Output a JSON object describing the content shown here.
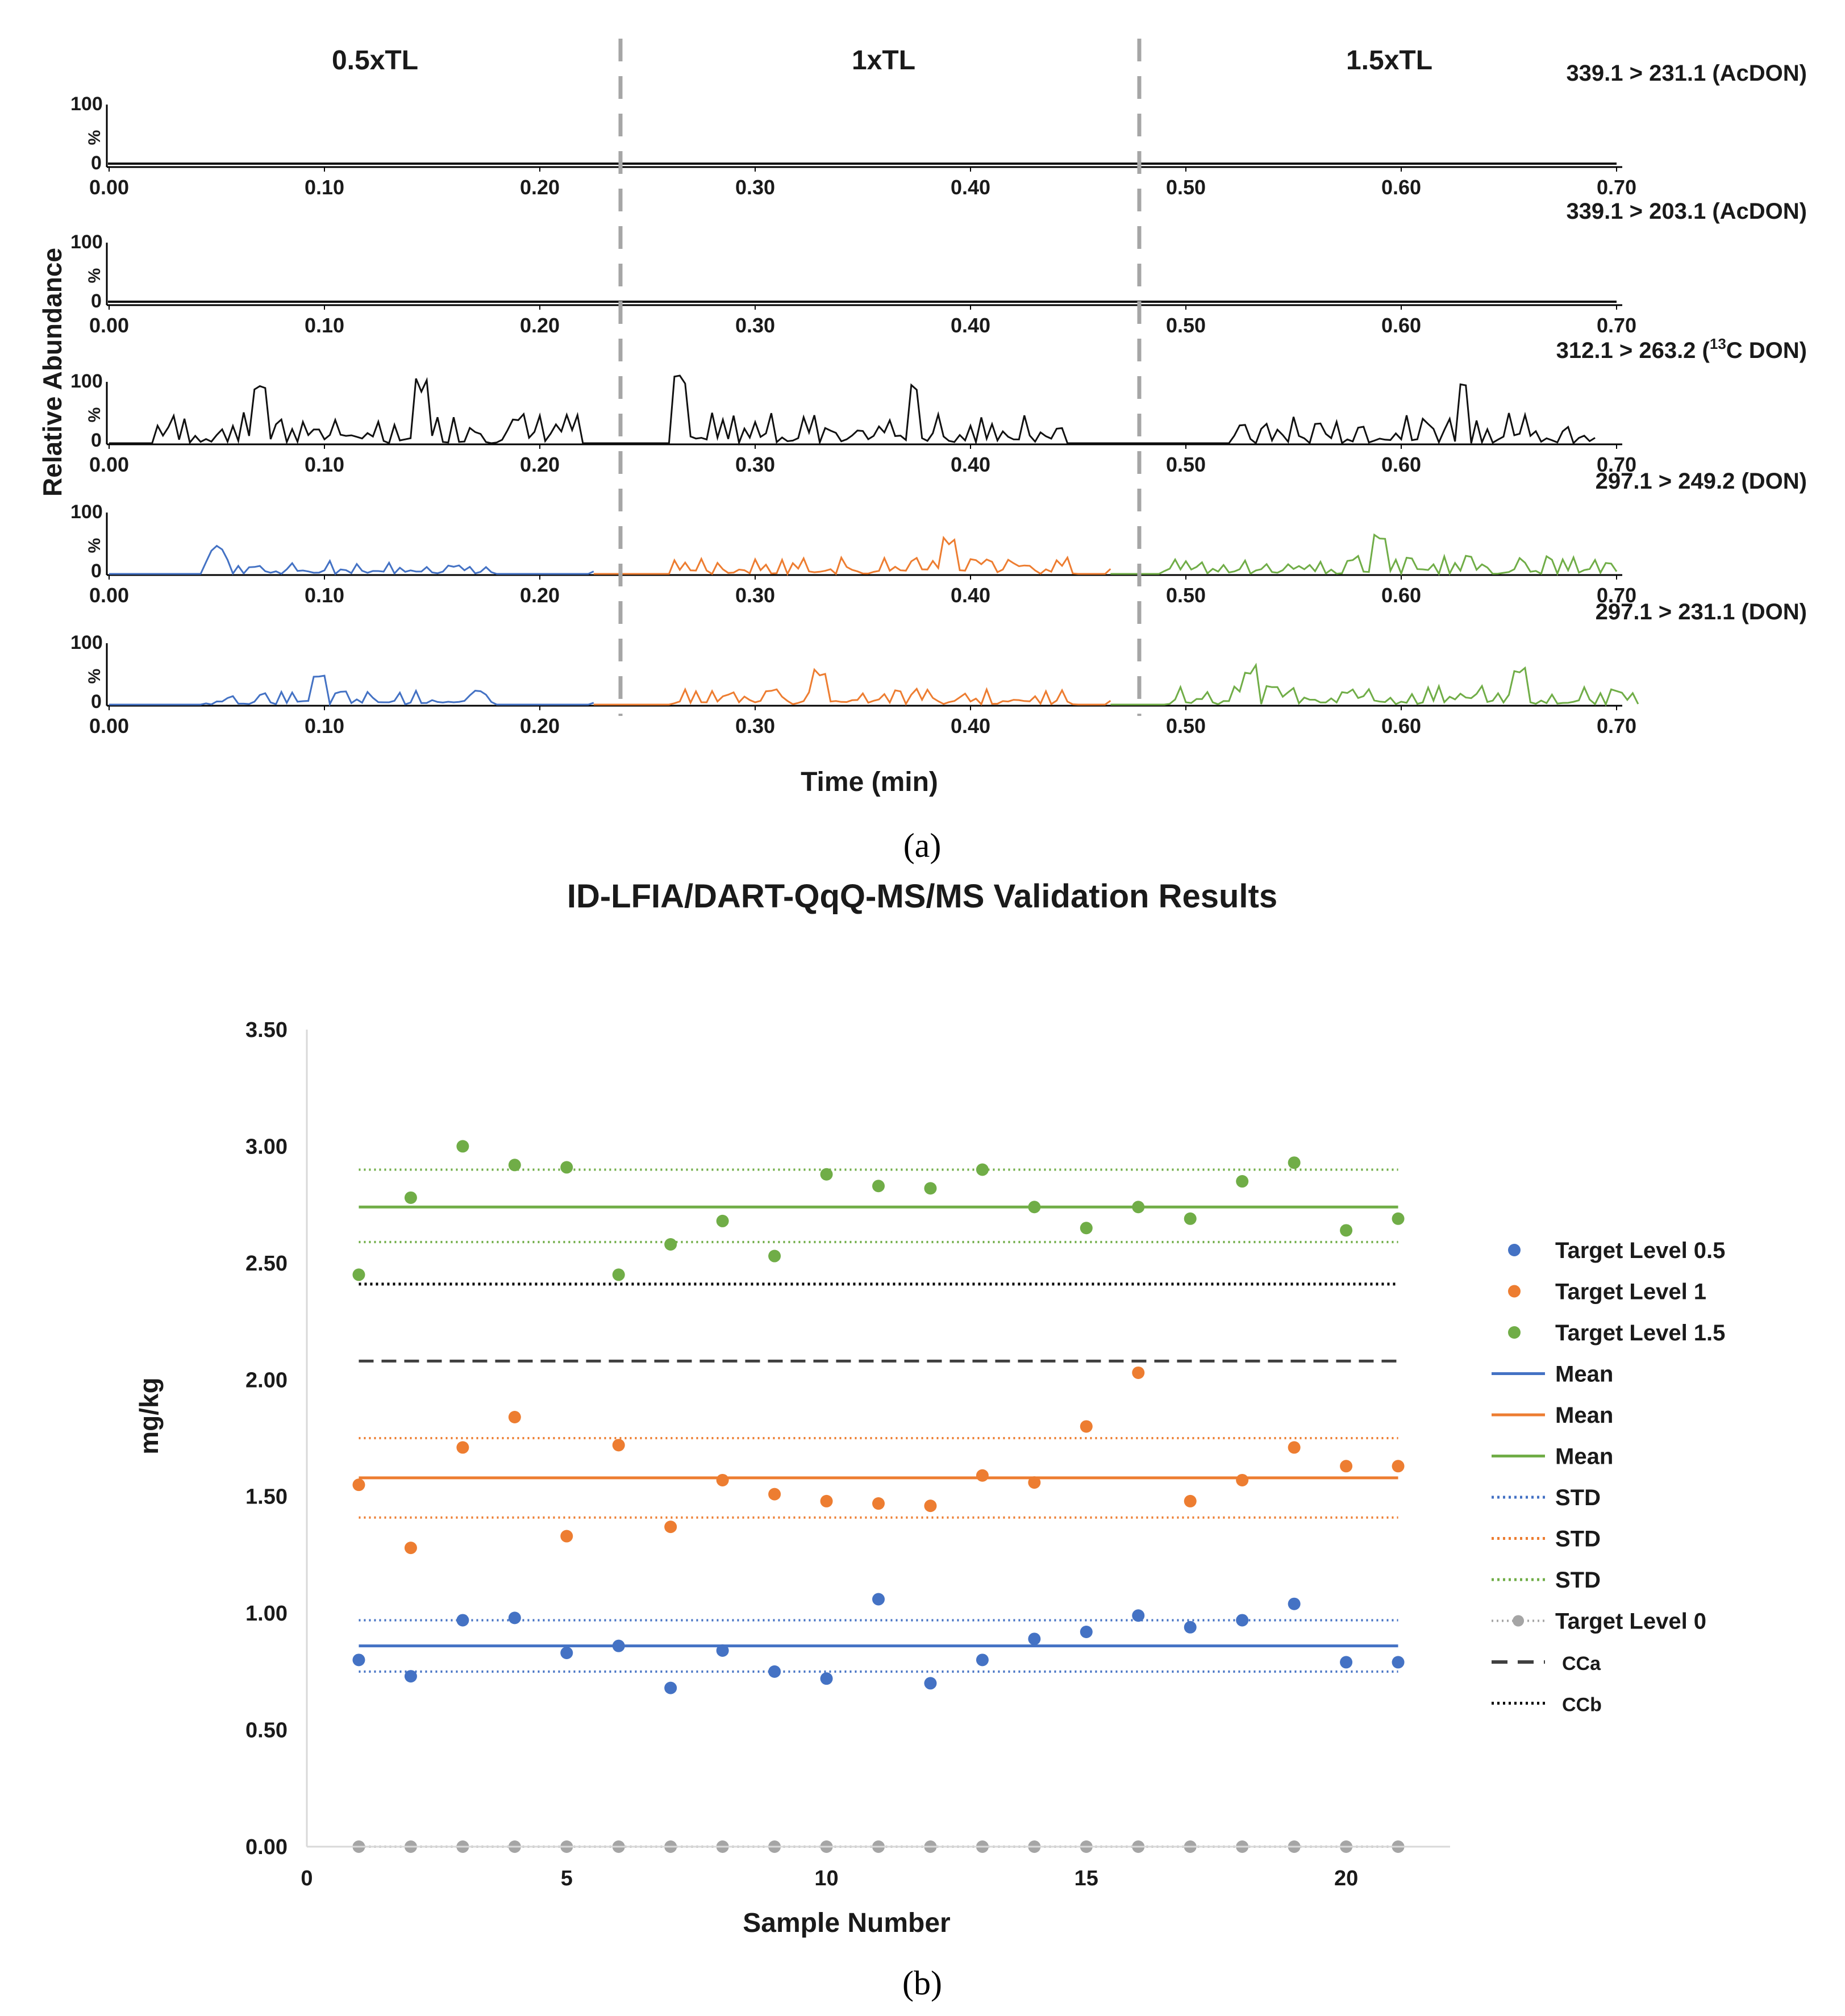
{
  "panel_a": {
    "caption": "(a)",
    "sections": [
      "0.5xTL",
      "1xTL",
      "1.5xTL"
    ],
    "y_axis_label": "Relative Abundance",
    "x_axis_label": "Time (min)",
    "y_tick_top": "100",
    "y_tick_bottom": "0",
    "y_unit": "%",
    "x_ticks": [
      "0.00",
      "0.10",
      "0.20",
      "0.30",
      "0.40",
      "0.50",
      "0.60",
      "0.70"
    ],
    "colors": {
      "black": "#111111",
      "blue": "#4472c4",
      "orange": "#ed7d31",
      "green": "#70ad47",
      "divider": "#a6a6a6"
    },
    "traces": [
      {
        "label": "339.1 > 231.1 (AcDON)",
        "kind": "flat"
      },
      {
        "label": "339.1 > 203.1 (AcDON)",
        "kind": "flat"
      },
      {
        "label": "312.1 > 263.2 (13C DON)",
        "label_main": "312.1 > 263.2 (",
        "label_sup": "13",
        "label_tail": "C DON)",
        "kind": "noise-black"
      },
      {
        "label": "297.1 > 249.2 (DON)",
        "kind": "noise-color"
      },
      {
        "label": "297.1 > 231.1 (DON)",
        "kind": "noise-color"
      }
    ]
  },
  "panel_b": {
    "caption": "(b)",
    "chart_data": {
      "type": "scatter",
      "title": "ID-LFIA/DART-QqQ-MS/MS Validation Results",
      "xlabel": "Sample Number",
      "ylabel": "mg/kg",
      "xlim": [
        0,
        22
      ],
      "ylim": [
        0,
        3.5
      ],
      "x_ticks": [
        0,
        5,
        10,
        15,
        20
      ],
      "y_ticks": [
        "0.00",
        "0.50",
        "1.00",
        "1.50",
        "2.00",
        "2.50",
        "3.00",
        "3.50"
      ],
      "x": [
        1,
        2,
        3,
        4,
        5,
        6,
        7,
        8,
        9,
        10,
        11,
        12,
        13,
        14,
        15,
        16,
        17,
        18,
        19,
        20,
        21
      ],
      "series": [
        {
          "name": "Target Level 0.5",
          "color": "#4472c4",
          "values": [
            0.8,
            0.73,
            0.97,
            0.98,
            0.83,
            0.86,
            0.68,
            0.84,
            0.75,
            0.72,
            1.06,
            0.7,
            0.8,
            0.89,
            0.92,
            0.99,
            0.94,
            0.97,
            1.04,
            0.79,
            0.79
          ],
          "mean": 0.86,
          "std_low": 0.75,
          "std_high": 0.97
        },
        {
          "name": "Target Level 1",
          "color": "#ed7d31",
          "values": [
            1.55,
            1.28,
            1.71,
            1.84,
            1.33,
            1.72,
            1.37,
            1.57,
            1.51,
            1.48,
            1.47,
            1.46,
            1.59,
            1.56,
            1.8,
            2.03,
            1.48,
            1.57,
            1.71,
            1.63,
            1.63
          ],
          "mean": 1.58,
          "std_low": 1.41,
          "std_high": 1.75
        },
        {
          "name": "Target Level 1.5",
          "color": "#70ad47",
          "values": [
            2.45,
            2.78,
            3.0,
            2.92,
            2.91,
            2.45,
            2.58,
            2.68,
            2.53,
            2.88,
            2.83,
            2.82,
            2.9,
            2.74,
            2.65,
            2.74,
            2.69,
            2.85,
            2.93,
            2.64,
            2.69
          ],
          "mean": 2.74,
          "std_low": 2.59,
          "std_high": 2.9
        },
        {
          "name": "Target Level 0",
          "color": "#a5a5a5",
          "values": [
            0,
            0,
            0,
            0,
            0,
            0,
            0,
            0,
            0,
            0,
            0,
            0,
            0,
            0,
            0,
            0,
            0,
            0,
            0,
            0,
            0
          ]
        }
      ],
      "cca": 2.08,
      "ccb": 2.41,
      "legend": [
        {
          "label": "Target Level 0.5",
          "style": "dot",
          "color": "#4472c4"
        },
        {
          "label": "Target Level 1",
          "style": "dot",
          "color": "#ed7d31"
        },
        {
          "label": "Target Level 1.5",
          "style": "dot",
          "color": "#70ad47"
        },
        {
          "label": "Mean",
          "style": "solid",
          "color": "#4472c4"
        },
        {
          "label": "Mean",
          "style": "solid",
          "color": "#ed7d31"
        },
        {
          "label": "Mean",
          "style": "solid",
          "color": "#70ad47"
        },
        {
          "label": "STD",
          "style": "dotted",
          "color": "#4472c4"
        },
        {
          "label": "STD",
          "style": "dotted",
          "color": "#ed7d31"
        },
        {
          "label": "STD",
          "style": "dotted",
          "color": "#70ad47"
        },
        {
          "label": "Target Level 0",
          "style": "dotline",
          "color": "#a5a5a5"
        },
        {
          "label": "CCa",
          "style": "dashed",
          "color": "#404040"
        },
        {
          "label": "CCb",
          "style": "dotted",
          "color": "#000000"
        }
      ],
      "legend_position": "right"
    }
  }
}
